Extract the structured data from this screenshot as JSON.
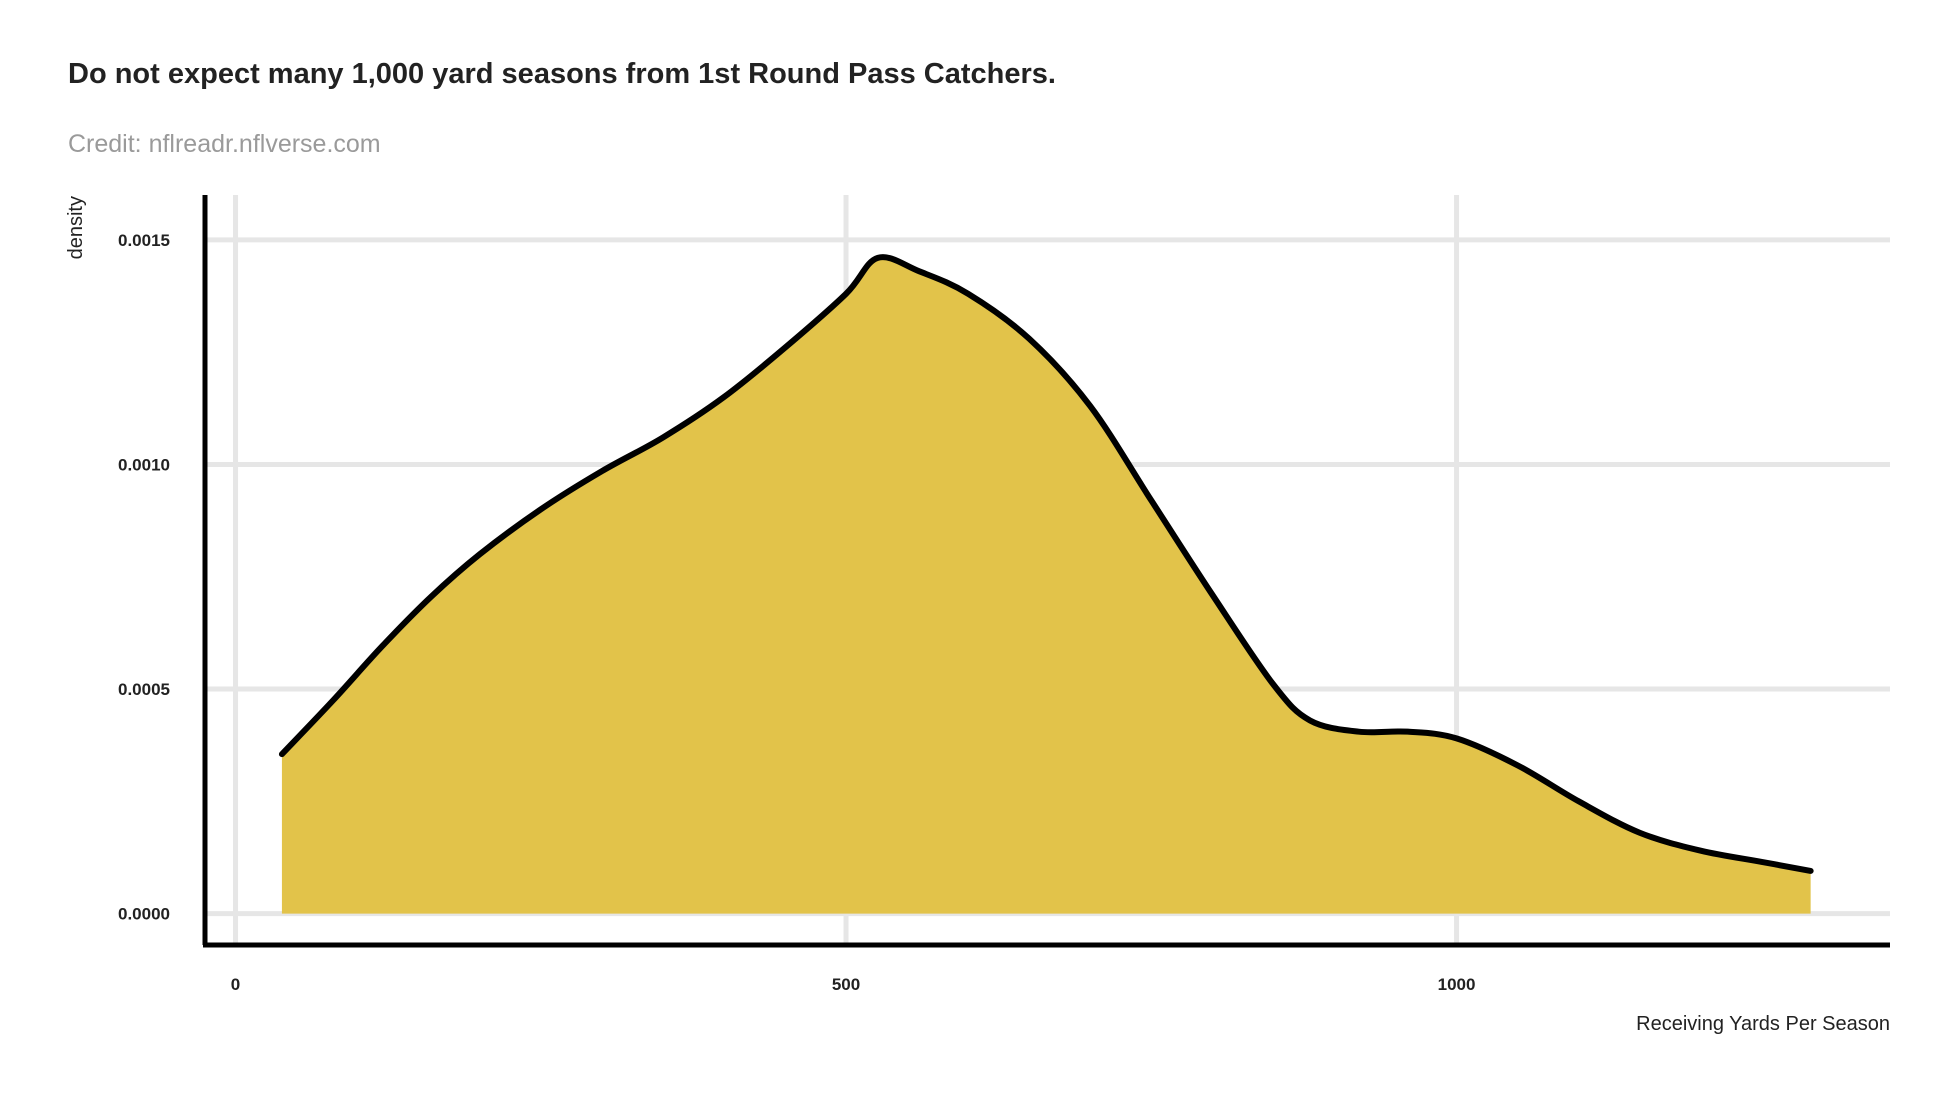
{
  "chart_data": {
    "type": "area",
    "title": "Do not expect many 1,000 yard seasons from 1st Round Pass Catchers.",
    "subtitle": "Credit: nflreadr.nflverse.com",
    "xlabel": "Receiving Yards Per Season",
    "ylabel": "density",
    "xlim": [
      -25,
      1355
    ],
    "ylim": [
      -7e-05,
      0.0016
    ],
    "xticks": [
      0,
      500,
      1000
    ],
    "xtick_labels": [
      "0",
      "500",
      "1000"
    ],
    "yticks": [
      0,
      0.0005,
      0.001,
      0.0015
    ],
    "ytick_labels": [
      "0.0000",
      "0.0005",
      "0.0010",
      "0.0015"
    ],
    "grid": true,
    "legend": "none",
    "series": [
      {
        "name": "density",
        "fill": "#E2C34A",
        "stroke": "#000000",
        "x": [
          38,
          80,
          120,
          160,
          200,
          250,
          300,
          350,
          400,
          450,
          500,
          526,
          560,
          600,
          650,
          700,
          750,
          800,
          850,
          880,
          920,
          960,
          1000,
          1050,
          1100,
          1150,
          1200,
          1250,
          1290
        ],
        "y": [
          0.000355,
          0.000475,
          0.000595,
          0.000705,
          0.0008,
          0.0009,
          0.000985,
          0.00106,
          0.00115,
          0.00126,
          0.00138,
          0.00146,
          0.00143,
          0.00138,
          0.00128,
          0.00113,
          0.00092,
          0.00071,
          0.00051,
          0.00043,
          0.000405,
          0.000405,
          0.00039,
          0.00033,
          0.00025,
          0.00018,
          0.00014,
          0.000115,
          9.5e-05
        ]
      }
    ]
  }
}
